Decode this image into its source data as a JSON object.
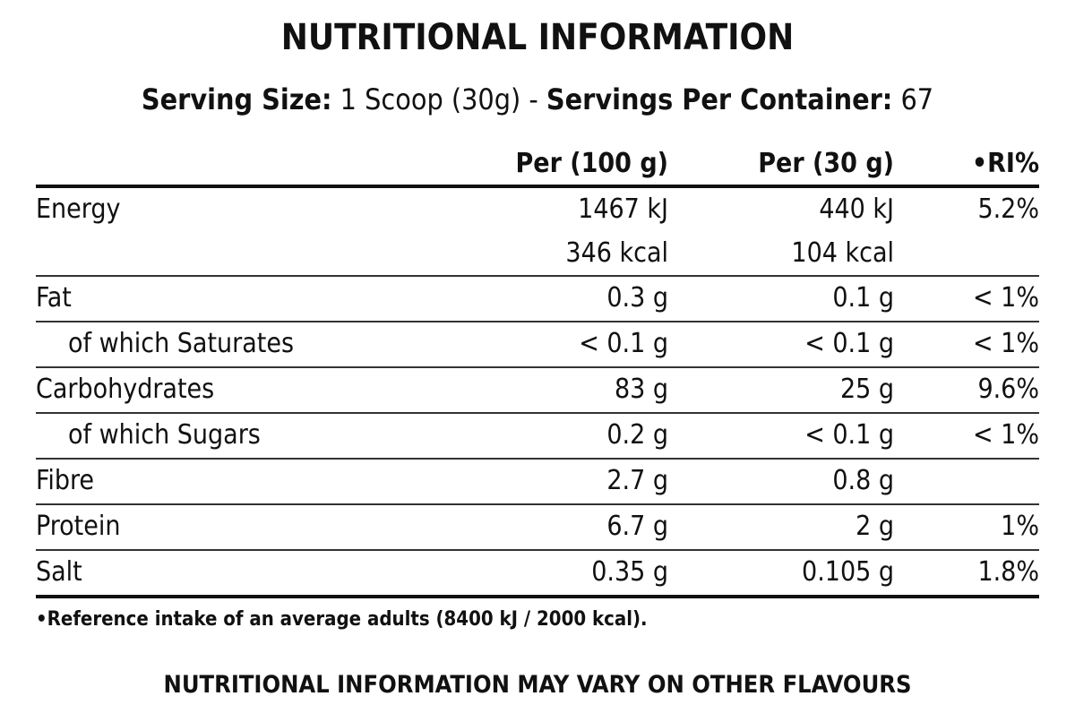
{
  "title": "NUTRITIONAL INFORMATION",
  "serving": {
    "size_label": "Serving Size:",
    "size_value": " 1 Scoop (30g) - ",
    "servings_label": "Servings Per Container:",
    "servings_value": " 67"
  },
  "table": {
    "headers": {
      "per_100g": "Per (100 g)",
      "per_30g": "Per (30 g)",
      "ri": "•RI%"
    },
    "rows": [
      {
        "label": "Energy",
        "per_100g": "1467 kJ",
        "per_30g": "440 kJ",
        "ri": "5.2%",
        "per_100g_2": "346 kcal",
        "per_30g_2": "104 kcal"
      },
      {
        "label": "Fat",
        "per_100g": "0.3 g",
        "per_30g": "0.1 g",
        "ri": "< 1%"
      },
      {
        "label": "of which Saturates",
        "per_100g": "< 0.1 g",
        "per_30g": "< 0.1 g",
        "ri": "< 1%"
      },
      {
        "label": "Carbohydrates",
        "per_100g": "83 g",
        "per_30g": "25 g",
        "ri": "9.6%"
      },
      {
        "label": "of which Sugars",
        "per_100g": "0.2 g",
        "per_30g": "< 0.1 g",
        "ri": "< 1%"
      },
      {
        "label": "Fibre",
        "per_100g": "2.7 g",
        "per_30g": "0.8 g",
        "ri": ""
      },
      {
        "label": "Protein",
        "per_100g": "6.7 g",
        "per_30g": "2 g",
        "ri": "1%"
      },
      {
        "label": "Salt",
        "per_100g": "0.35 g",
        "per_30g": "0.105 g",
        "ri": "1.8%"
      }
    ]
  },
  "footnote": "•Reference intake of an average adults (8400 kJ / 2000 kcal).",
  "disclaimer": "NUTRITIONAL INFORMATION MAY VARY ON OTHER FLAVOURS"
}
